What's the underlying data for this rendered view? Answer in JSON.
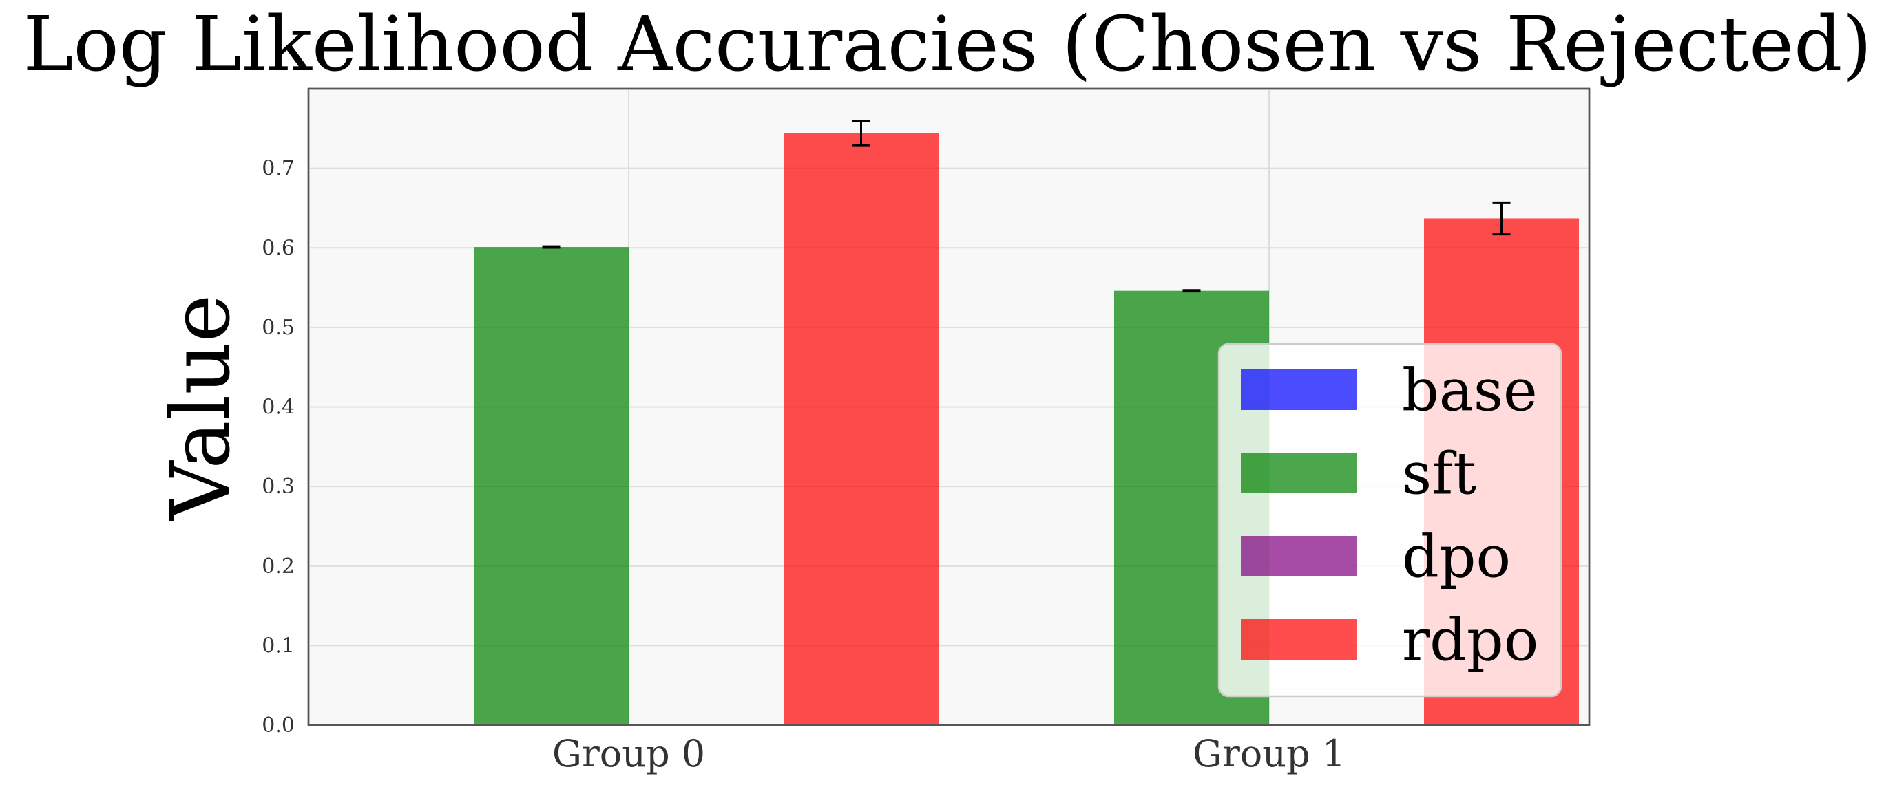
{
  "chart_data": {
    "type": "bar",
    "title": "Log Likelihood Accuracies (Chosen vs Rejected)",
    "xlabel": "",
    "ylabel": "Value",
    "categories": [
      "Group 0",
      "Group 1"
    ],
    "ylim": [
      0,
      0.8
    ],
    "yticks": [
      "0.0",
      "0.1",
      "0.2",
      "0.3",
      "0.4",
      "0.5",
      "0.6",
      "0.7"
    ],
    "grid": true,
    "legend_position": "lower-right",
    "series": [
      {
        "name": "base",
        "color": "#0000ff",
        "values": [
          0,
          0
        ],
        "errors": [
          0,
          0
        ]
      },
      {
        "name": "sft",
        "color": "#008000",
        "values": [
          0.601,
          0.546
        ],
        "errors": [
          0.0008,
          0.0008
        ]
      },
      {
        "name": "dpo",
        "color": "#800080",
        "values": [
          0,
          0
        ],
        "errors": [
          0,
          0
        ]
      },
      {
        "name": "rdpo",
        "color": "#ff0000",
        "values": [
          0.744,
          0.637
        ],
        "errors": [
          0.015,
          0.02
        ]
      }
    ]
  }
}
